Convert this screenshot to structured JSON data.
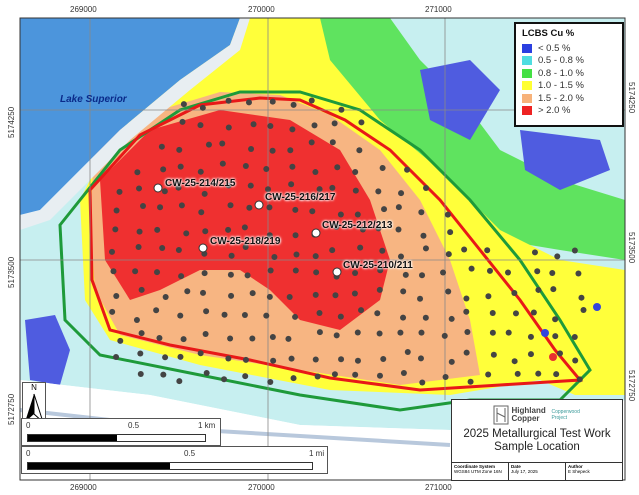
{
  "legend": {
    "title": "LCBS Cu %",
    "items": [
      {
        "label": "< 0.5 %",
        "color": "#2b3fe0"
      },
      {
        "label": "0.5 - 0.8 %",
        "color": "#4fdde0"
      },
      {
        "label": "0.8 - 1.0 %",
        "color": "#44e044"
      },
      {
        "label": "1.0 - 1.5 %",
        "color": "#ffff33"
      },
      {
        "label": "1.5 - 2.0 %",
        "color": "#f7b27a"
      },
      {
        "label": "> 2.0 %",
        "color": "#ee2222"
      }
    ]
  },
  "map": {
    "lake_label": "Lake Superior",
    "drillholes": [
      "CW-25-214/215",
      "CW-25-216/217",
      "CW-25-212/213",
      "CW-25-218/219",
      "CW-25-210/211"
    ],
    "easting_ticks": [
      "269000",
      "270000",
      "271000"
    ],
    "northing_ticks": [
      "5174250",
      "5173500",
      "5172750"
    ],
    "north_arrow": "N"
  },
  "scalebar_km": {
    "labels": [
      "0",
      "0.5",
      "1 km"
    ],
    "fill": 0.5
  },
  "scalebar_mi": {
    "labels": [
      "0",
      "0.5",
      "1 mi"
    ],
    "fill": 0.5
  },
  "titleblock": {
    "company": "Highland Copper",
    "project": "Copperwood Project",
    "title_line1": "2025 Metallurgical Test Work",
    "title_line2": "Sample Location",
    "coord_label": "Coordinate System",
    "coord_value": "WGS84 UTM Zone 16N",
    "date_label": "Date",
    "date_value": "July 17, 2025",
    "author_label": "Author",
    "author_value": "E Shepeck"
  }
}
